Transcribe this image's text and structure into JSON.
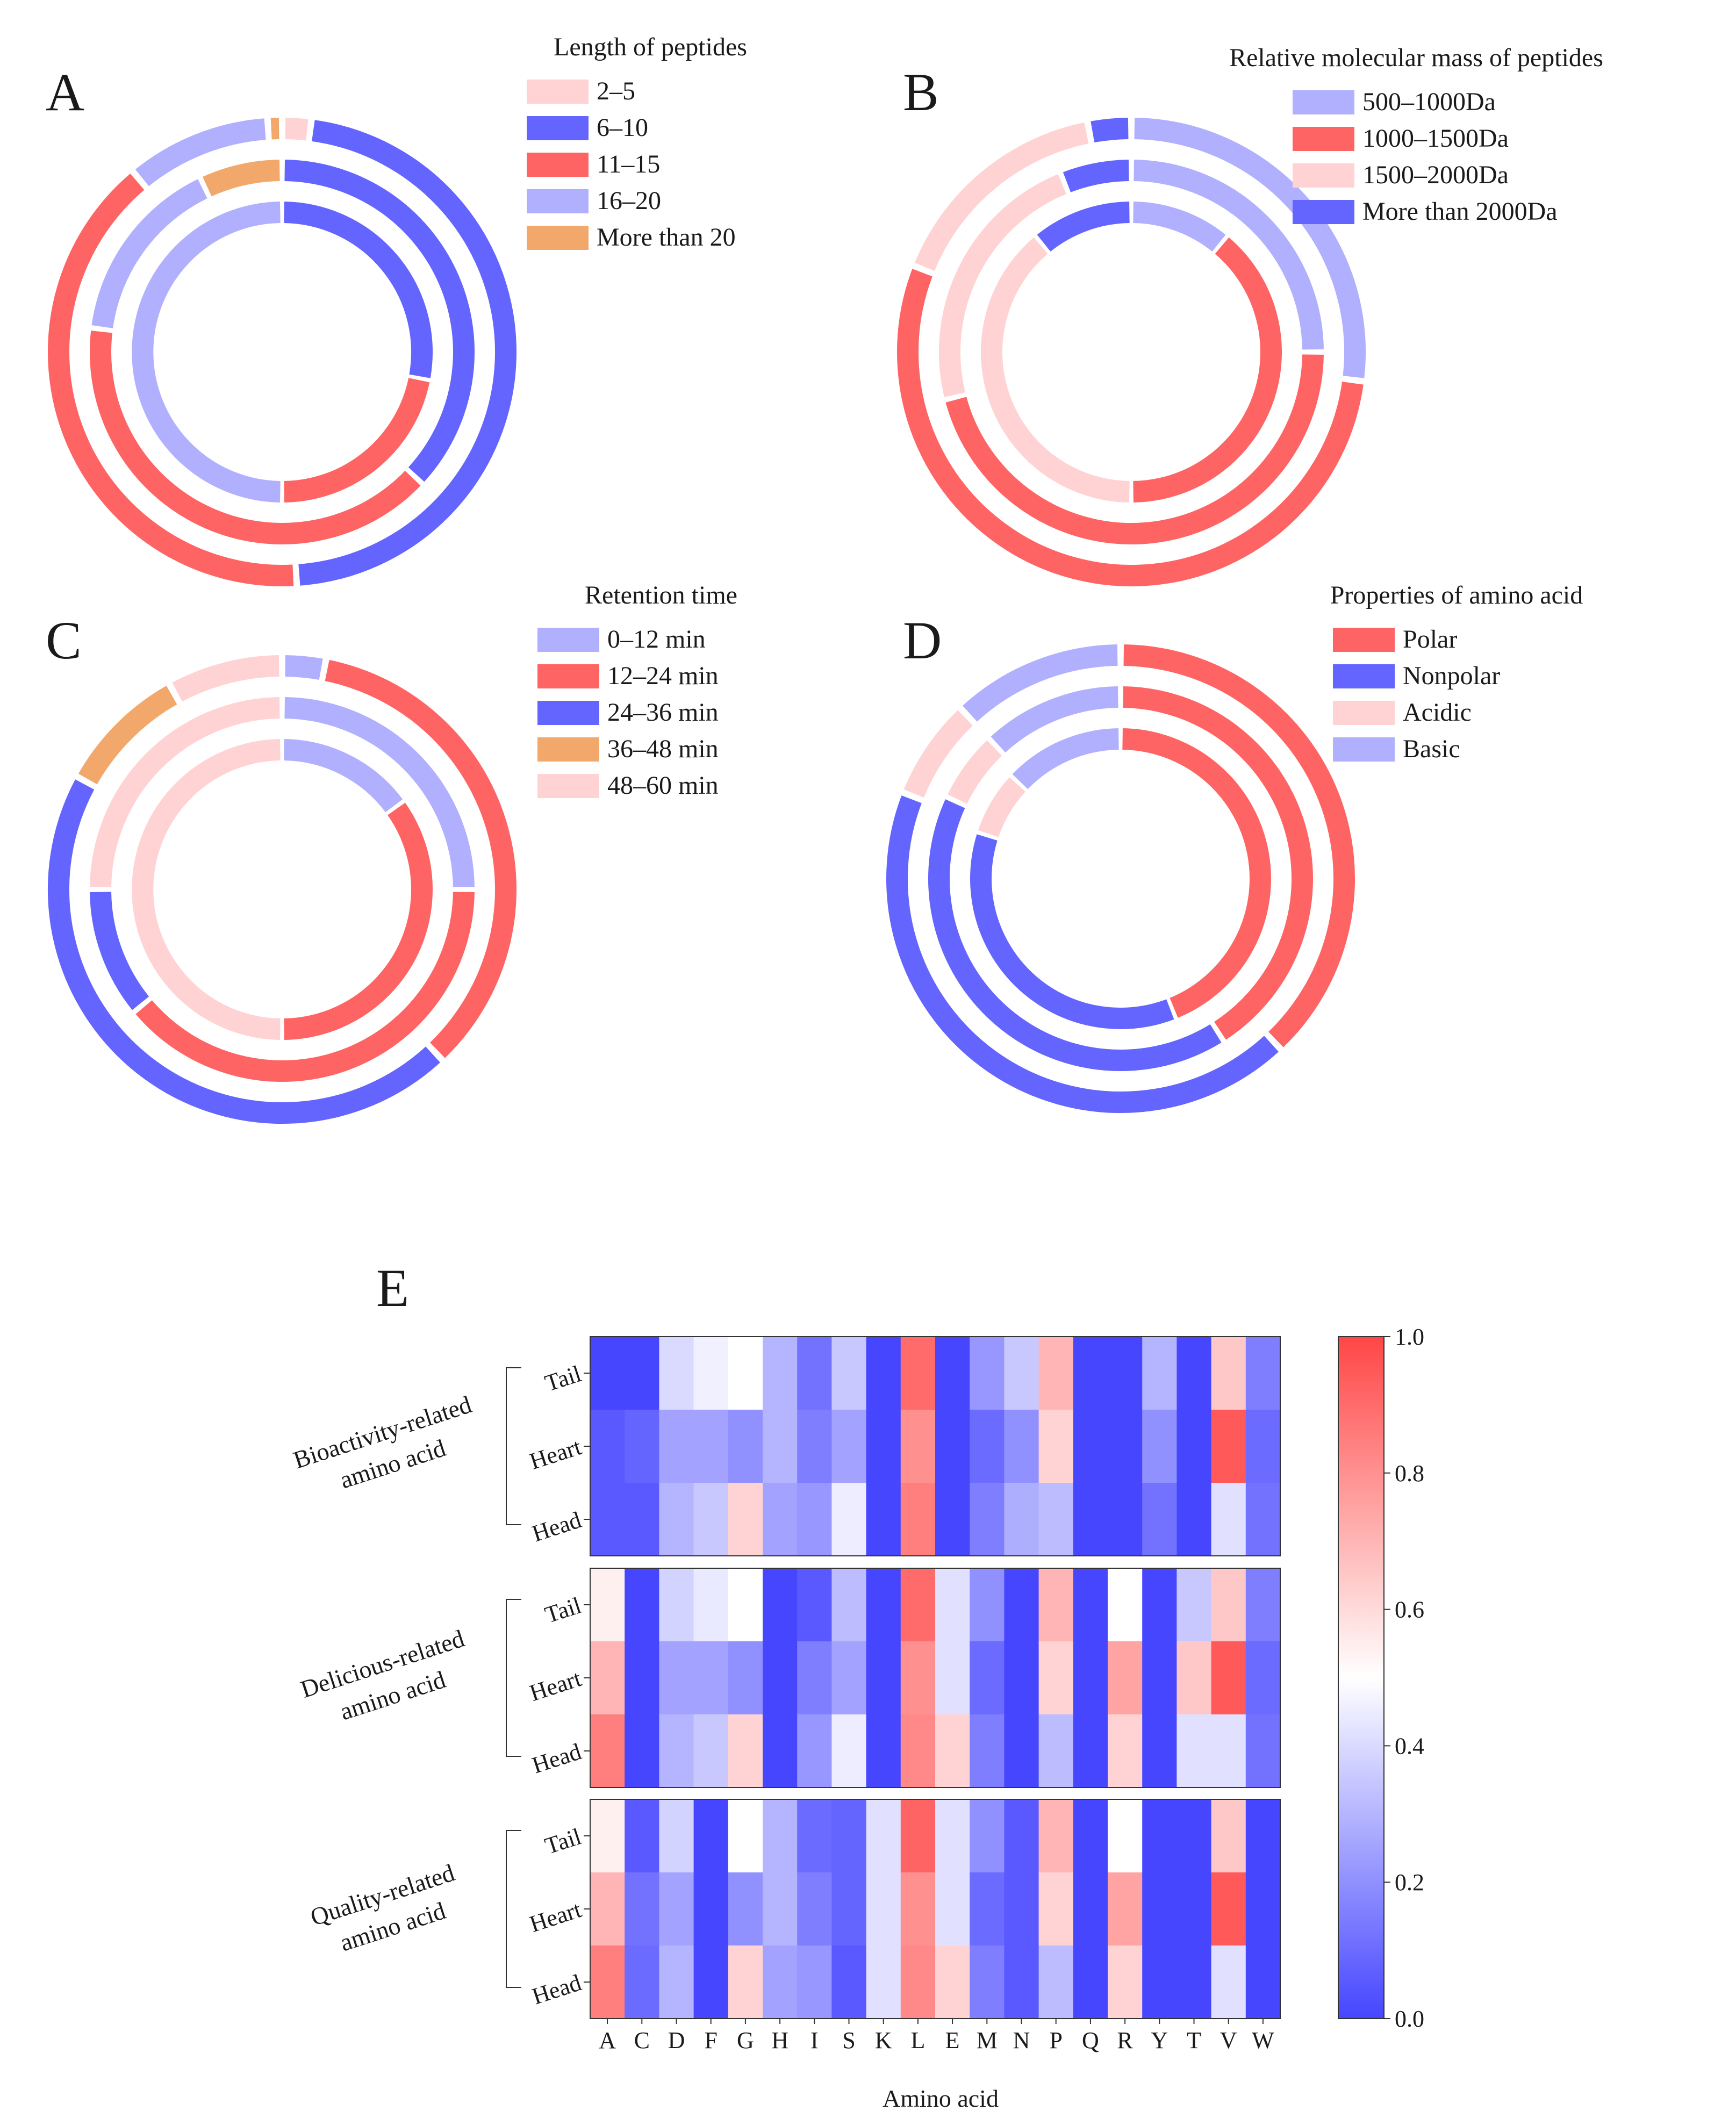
{
  "colors": {
    "red": "#ff6464",
    "blue": "#6464ff",
    "pink": "#ffd3d3",
    "lavender": "#b0b0ff",
    "orange": "#f3a86b"
  },
  "chart_data": [
    {
      "panel": "A",
      "type": "pie",
      "subtype": "concentric-donut",
      "legend_title": "Length of peptides",
      "legend_position": "top-right",
      "categories": [
        "2–5",
        "6–10",
        "11–15",
        "16–20",
        "More than 20"
      ],
      "colors": [
        "#ffd3d3",
        "#6464ff",
        "#ff6464",
        "#b0b0ff",
        "#f3a86b"
      ],
      "rings": [
        {
          "ring": "inner",
          "values": [
            0,
            28,
            22,
            50,
            0
          ]
        },
        {
          "ring": "middle",
          "values": [
            0,
            37,
            40,
            16,
            7
          ]
        },
        {
          "ring": "outer",
          "values": [
            2,
            47,
            40,
            10,
            1
          ]
        }
      ]
    },
    {
      "panel": "B",
      "type": "pie",
      "subtype": "concentric-donut",
      "legend_title": "Relative molecular mass of peptides",
      "legend_position": "top-right",
      "categories": [
        "500–1000Da",
        "1000–1500Da",
        "1500–2000Da",
        "More than 2000Da"
      ],
      "colors": [
        "#b0b0ff",
        "#ff6464",
        "#ffd3d3",
        "#6464ff"
      ],
      "rings": [
        {
          "ring": "inner",
          "values": [
            11,
            39,
            39,
            11
          ]
        },
        {
          "ring": "middle",
          "values": [
            25,
            46,
            23,
            6
          ]
        },
        {
          "ring": "outer",
          "values": [
            27,
            54,
            16,
            3
          ]
        }
      ]
    },
    {
      "panel": "C",
      "type": "pie",
      "subtype": "concentric-donut",
      "legend_title": "Retention time",
      "legend_position": "top-right",
      "categories": [
        "0–12 min",
        "12–24 min",
        "24–36 min",
        "36–48 min",
        "48–60 min"
      ],
      "colors": [
        "#b0b0ff",
        "#ff6464",
        "#6464ff",
        "#f3a86b",
        "#ffd3d3"
      ],
      "rings": [
        {
          "ring": "inner",
          "values": [
            15,
            35,
            0,
            0,
            50
          ]
        },
        {
          "ring": "middle",
          "values": [
            25,
            39,
            11,
            0,
            25
          ]
        },
        {
          "ring": "outer",
          "values": [
            3,
            35,
            45,
            9,
            8
          ]
        }
      ]
    },
    {
      "panel": "D",
      "type": "pie",
      "subtype": "concentric-donut",
      "legend_title": "Properties of amino acid",
      "legend_position": "top-right",
      "categories": [
        "Polar",
        "Nonpolar",
        "Acidic",
        "Basic"
      ],
      "colors": [
        "#ff6464",
        "#6464ff",
        "#ffd3d3",
        "#b0b0ff"
      ],
      "rings": [
        {
          "ring": "inner",
          "values": [
            44,
            36,
            7,
            13
          ]
        },
        {
          "ring": "middle",
          "values": [
            41,
            41,
            6,
            12
          ]
        },
        {
          "ring": "outer",
          "values": [
            38,
            43,
            7,
            12
          ]
        }
      ]
    },
    {
      "panel": "E",
      "type": "heatmap",
      "xlabel": "Amino acid",
      "x": [
        "A",
        "C",
        "D",
        "F",
        "G",
        "H",
        "I",
        "S",
        "K",
        "L",
        "E",
        "M",
        "N",
        "P",
        "Q",
        "R",
        "Y",
        "T",
        "V",
        "W"
      ],
      "rows": [
        "Tail",
        "Heart",
        "Head"
      ],
      "colorbar": {
        "min": 0.0,
        "max": 1.0,
        "ticks": [
          "0.0",
          "0.2",
          "0.4",
          "0.6",
          "0.8",
          "1.0"
        ],
        "low_color": "#4646ff",
        "mid_color": "#ffffff",
        "high_color": "#ff4646"
      },
      "groups": [
        {
          "name": "Bioactivity-related amino acid",
          "label_lines": [
            "Bioactivity-related",
            "amino acid"
          ],
          "values": [
            [
              0.0,
              0.0,
              0.4,
              0.46,
              0.5,
              0.3,
              0.12,
              0.35,
              0.0,
              0.9,
              0.0,
              0.22,
              0.35,
              0.7,
              0.0,
              0.0,
              0.3,
              0.0,
              0.65,
              0.15
            ],
            [
              0.05,
              0.08,
              0.25,
              0.25,
              0.2,
              0.3,
              0.15,
              0.25,
              0.0,
              0.8,
              0.0,
              0.1,
              0.2,
              0.62,
              0.0,
              0.0,
              0.2,
              0.0,
              0.95,
              0.1
            ],
            [
              0.05,
              0.05,
              0.3,
              0.35,
              0.62,
              0.25,
              0.22,
              0.45,
              0.0,
              0.85,
              0.0,
              0.15,
              0.28,
              0.32,
              0.0,
              0.0,
              0.12,
              0.0,
              0.42,
              0.12
            ]
          ]
        },
        {
          "name": "Delicious-related amino acid",
          "label_lines": [
            "Delicious-related",
            "amino acid"
          ],
          "values": [
            [
              0.54,
              0.0,
              0.38,
              0.44,
              0.5,
              0.0,
              0.05,
              0.32,
              0.0,
              0.9,
              0.42,
              0.2,
              0.0,
              0.7,
              0.0,
              0.5,
              0.0,
              0.35,
              0.65,
              0.15
            ],
            [
              0.7,
              0.0,
              0.25,
              0.25,
              0.2,
              0.0,
              0.15,
              0.25,
              0.0,
              0.8,
              0.42,
              0.1,
              0.0,
              0.62,
              0.0,
              0.75,
              0.0,
              0.65,
              0.95,
              0.1
            ],
            [
              0.85,
              0.0,
              0.3,
              0.35,
              0.62,
              0.0,
              0.22,
              0.45,
              0.0,
              0.82,
              0.62,
              0.15,
              0.0,
              0.32,
              0.0,
              0.62,
              0.0,
              0.42,
              0.42,
              0.12
            ]
          ]
        },
        {
          "name": "Quality-related amino acid",
          "label_lines": [
            "Quality-related",
            "amino acid"
          ],
          "values": [
            [
              0.54,
              0.05,
              0.38,
              0.0,
              0.5,
              0.3,
              0.1,
              0.08,
              0.42,
              0.92,
              0.42,
              0.2,
              0.05,
              0.7,
              0.0,
              0.5,
              0.0,
              0.0,
              0.65,
              0.0
            ],
            [
              0.7,
              0.12,
              0.25,
              0.0,
              0.2,
              0.3,
              0.15,
              0.08,
              0.42,
              0.8,
              0.42,
              0.1,
              0.05,
              0.62,
              0.0,
              0.75,
              0.0,
              0.0,
              0.95,
              0.0
            ],
            [
              0.85,
              0.1,
              0.3,
              0.0,
              0.62,
              0.25,
              0.22,
              0.05,
              0.42,
              0.82,
              0.62,
              0.15,
              0.05,
              0.32,
              0.0,
              0.62,
              0.0,
              0.0,
              0.42,
              0.0
            ]
          ]
        }
      ]
    }
  ]
}
